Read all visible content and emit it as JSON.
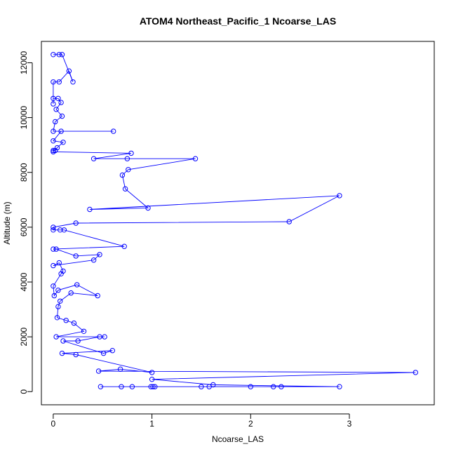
{
  "chart_data": {
    "type": "line",
    "title": "ATOM4 Northeast_Pacific_1 Ncoarse_LAS",
    "xlabel": "Ncoarse_LAS",
    "ylabel": "Altitude (m)",
    "xlim": [
      -0.12,
      3.86
    ],
    "ylim": [
      -480,
      12780
    ],
    "xticks": [
      0,
      1,
      2,
      3
    ],
    "yticks": [
      0,
      2000,
      4000,
      6000,
      8000,
      10000,
      12000
    ],
    "xtick_labels": [
      "0",
      "1",
      "2",
      "3"
    ],
    "ytick_labels": [
      "0",
      "2000",
      "4000",
      "6000",
      "8000",
      "10000",
      "12000"
    ],
    "grid": false,
    "legend": "none",
    "series": [
      {
        "color": "#0000ff",
        "markers": "open-circle",
        "points": [
          [
            0.48,
            180
          ],
          [
            0.69,
            180
          ],
          [
            0.8,
            180
          ],
          [
            0.99,
            180
          ],
          [
            1.01,
            180
          ],
          [
            1.03,
            180
          ],
          [
            1.5,
            180
          ],
          [
            1.58,
            180
          ],
          [
            2.0,
            180
          ],
          [
            2.23,
            180
          ],
          [
            2.31,
            180
          ],
          [
            2.9,
            180
          ],
          [
            1.62,
            250
          ],
          [
            1.0,
            450
          ],
          [
            3.67,
            700
          ],
          [
            0.46,
            750
          ],
          [
            0.68,
            820
          ],
          [
            1.0,
            700
          ],
          [
            0.23,
            1350
          ],
          [
            0.09,
            1400
          ],
          [
            0.6,
            1500
          ],
          [
            0.51,
            1400
          ],
          [
            0.1,
            1850
          ],
          [
            0.25,
            1850
          ],
          [
            0.47,
            2000
          ],
          [
            0.52,
            2000
          ],
          [
            0.03,
            2000
          ],
          [
            0.31,
            2200
          ],
          [
            0.21,
            2500
          ],
          [
            0.13,
            2600
          ],
          [
            0.04,
            2700
          ],
          [
            0.05,
            3100
          ],
          [
            0.07,
            3300
          ],
          [
            0.18,
            3600
          ],
          [
            0.45,
            3500
          ],
          [
            0.24,
            3900
          ],
          [
            0.05,
            3700
          ],
          [
            0.01,
            3500
          ],
          [
            0.0,
            3850
          ],
          [
            0.08,
            4300
          ],
          [
            0.1,
            4400
          ],
          [
            0.06,
            4700
          ],
          [
            0.0,
            4600
          ],
          [
            0.41,
            4800
          ],
          [
            0.47,
            5000
          ],
          [
            0.23,
            4950
          ],
          [
            0.03,
            5200
          ],
          [
            0.0,
            5200
          ],
          [
            0.72,
            5300
          ],
          [
            0.11,
            5900
          ],
          [
            0.07,
            5900
          ],
          [
            0.0,
            5900
          ],
          [
            0.0,
            6000
          ],
          [
            0.23,
            6150
          ],
          [
            2.39,
            6200
          ],
          [
            2.9,
            7150
          ],
          [
            0.37,
            6650
          ],
          [
            0.96,
            6700
          ],
          [
            0.73,
            7400
          ],
          [
            0.7,
            7900
          ],
          [
            0.76,
            8100
          ],
          [
            1.44,
            8500
          ],
          [
            0.75,
            8500
          ],
          [
            0.41,
            8500
          ],
          [
            0.79,
            8700
          ],
          [
            0.0,
            8750
          ],
          [
            0.0,
            8800
          ],
          [
            0.02,
            8800
          ],
          [
            0.04,
            8900
          ],
          [
            0.1,
            9100
          ],
          [
            0.0,
            9150
          ],
          [
            0.08,
            9500
          ],
          [
            0.61,
            9500
          ],
          [
            0.0,
            9500
          ],
          [
            0.02,
            9850
          ],
          [
            0.09,
            10050
          ],
          [
            0.03,
            10300
          ],
          [
            0.08,
            10550
          ],
          [
            0.05,
            10700
          ],
          [
            0.0,
            10700
          ],
          [
            0.0,
            10500
          ],
          [
            0.0,
            11300
          ],
          [
            0.06,
            11300
          ],
          [
            0.16,
            11700
          ],
          [
            0.2,
            11300
          ],
          [
            0.09,
            12300
          ],
          [
            0.06,
            12300
          ],
          [
            0.0,
            12300
          ]
        ]
      }
    ]
  }
}
